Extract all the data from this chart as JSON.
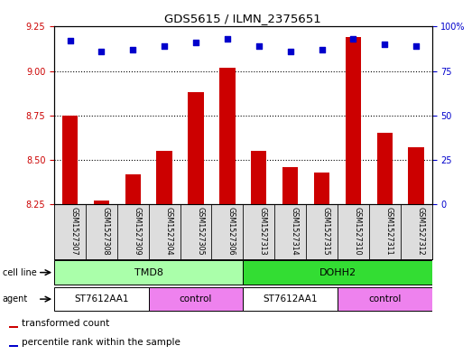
{
  "title": "GDS5615 / ILMN_2375651",
  "samples": [
    "GSM1527307",
    "GSM1527308",
    "GSM1527309",
    "GSM1527304",
    "GSM1527305",
    "GSM1527306",
    "GSM1527313",
    "GSM1527314",
    "GSM1527315",
    "GSM1527310",
    "GSM1527311",
    "GSM1527312"
  ],
  "bar_values": [
    8.75,
    8.27,
    8.42,
    8.55,
    8.88,
    9.02,
    8.55,
    8.46,
    8.43,
    9.19,
    8.65,
    8.57
  ],
  "bar_base": 8.25,
  "bar_color": "#CC0000",
  "dot_values": [
    92,
    86,
    87,
    89,
    91,
    93,
    89,
    86,
    87,
    93,
    90,
    89
  ],
  "dot_color": "#0000CC",
  "ylim_left": [
    8.25,
    9.25
  ],
  "ylim_right": [
    0,
    100
  ],
  "yticks_left": [
    8.25,
    8.5,
    8.75,
    9.0,
    9.25
  ],
  "yticks_right": [
    0,
    25,
    50,
    75,
    100
  ],
  "hlines": [
    8.5,
    8.75,
    9.0
  ],
  "cell_line_groups": [
    {
      "label": "TMD8",
      "start": 0,
      "end": 6,
      "color": "#AAFFAA"
    },
    {
      "label": "DOHH2",
      "start": 6,
      "end": 12,
      "color": "#33DD33"
    }
  ],
  "agent_groups": [
    {
      "label": "ST7612AA1",
      "start": 0,
      "end": 3,
      "color": "#FFFFFF"
    },
    {
      "label": "control",
      "start": 3,
      "end": 6,
      "color": "#EE82EE"
    },
    {
      "label": "ST7612AA1",
      "start": 6,
      "end": 9,
      "color": "#FFFFFF"
    },
    {
      "label": "control",
      "start": 9,
      "end": 12,
      "color": "#EE82EE"
    }
  ],
  "cell_line_label": "cell line",
  "agent_label": "agent",
  "legend_items": [
    {
      "color": "#CC0000",
      "label": "transformed count"
    },
    {
      "color": "#0000CC",
      "label": "percentile rank within the sample"
    }
  ],
  "bar_width": 0.5,
  "background_color": "#DDDDDD",
  "plot_bg": "#FFFFFF"
}
